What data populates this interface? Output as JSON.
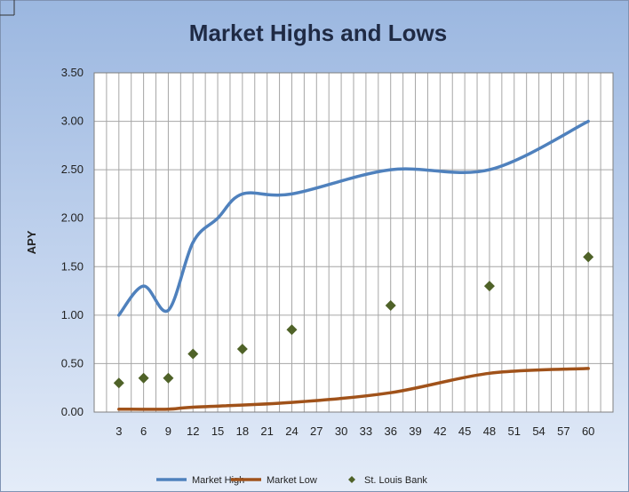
{
  "chart_data": {
    "type": "line",
    "title": "Market Highs and Lows",
    "xlabel": "",
    "ylabel": "APY",
    "x": [
      3,
      6,
      9,
      12,
      15,
      18,
      21,
      24,
      27,
      30,
      33,
      36,
      39,
      42,
      45,
      48,
      51,
      54,
      57,
      60
    ],
    "y_ticks": [
      "0.00",
      "0.50",
      "1.00",
      "1.50",
      "2.00",
      "2.50",
      "3.00",
      "3.50"
    ],
    "ylim": [
      0,
      3.5
    ],
    "xlim": [
      0,
      63
    ],
    "grid": true,
    "legend_position": "bottom",
    "series": [
      {
        "name": "Market High",
        "kind": "line",
        "color": "#4f81bd",
        "points": [
          [
            3,
            1.0
          ],
          [
            6,
            1.3
          ],
          [
            9,
            1.05
          ],
          [
            12,
            1.75
          ],
          [
            15,
            2.0
          ],
          [
            18,
            2.25
          ],
          [
            24,
            2.25
          ],
          [
            36,
            2.5
          ],
          [
            48,
            2.5
          ],
          [
            60,
            3.0
          ]
        ]
      },
      {
        "name": "Market Low",
        "kind": "line",
        "color": "#a0521a",
        "points": [
          [
            3,
            0.03
          ],
          [
            9,
            0.03
          ],
          [
            12,
            0.05
          ],
          [
            24,
            0.1
          ],
          [
            36,
            0.2
          ],
          [
            48,
            0.4
          ],
          [
            60,
            0.45
          ]
        ]
      },
      {
        "name": "St. Louis Bank",
        "kind": "scatter",
        "color": "#4f6228",
        "points": [
          [
            3,
            0.3
          ],
          [
            6,
            0.35
          ],
          [
            9,
            0.35
          ],
          [
            12,
            0.6
          ],
          [
            18,
            0.65
          ],
          [
            24,
            0.85
          ],
          [
            36,
            1.1
          ],
          [
            48,
            1.3
          ],
          [
            60,
            1.6
          ]
        ]
      }
    ]
  }
}
